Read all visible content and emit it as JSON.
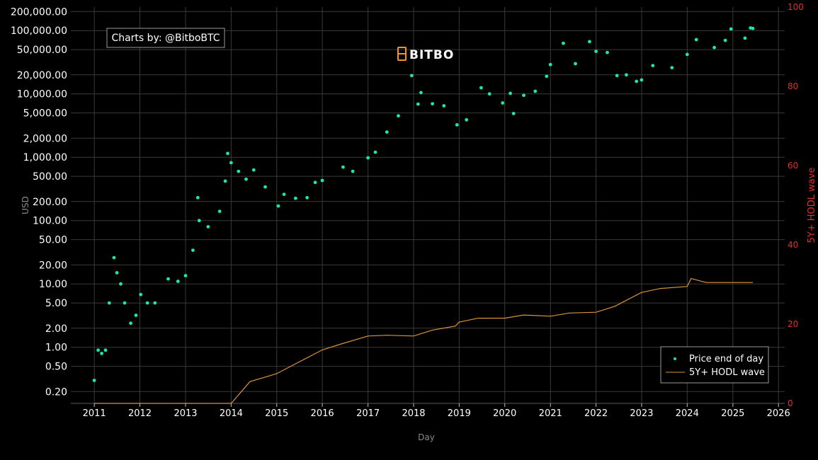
{
  "credit": "Charts by: @BitboBTC",
  "logo_text": "BITBO",
  "colors": {
    "background": "#000000",
    "price": "#1de9a0",
    "hodl": "#d9923b",
    "right_axis": "#e0312b",
    "grid": "#3a3a3a",
    "logo_accent": "#f7931a"
  },
  "chart_data": {
    "type": "scatter",
    "xlabel": "Day",
    "ylabel": "USD",
    "y2label": "5Y+ HODL wave",
    "y_scale": "log",
    "ylim": [
      0.13,
      235000
    ],
    "y2lim": [
      0,
      100
    ],
    "xlim": [
      "2010-06-27",
      "2026-02-20"
    ],
    "grid": true,
    "legend_position": "bottom-right",
    "x_ticks": [
      "2011",
      "2012",
      "2013",
      "2014",
      "2015",
      "2016",
      "2017",
      "2018",
      "2019",
      "2020",
      "2021",
      "2022",
      "2023",
      "2024",
      "2025",
      "2026"
    ],
    "y_ticks": [
      {
        "value": 200000,
        "label": "200,000.00"
      },
      {
        "value": 100000,
        "label": "100,000.00"
      },
      {
        "value": 50000,
        "label": "50,000.00"
      },
      {
        "value": 20000,
        "label": "20,000.00"
      },
      {
        "value": 10000,
        "label": "10,000.00"
      },
      {
        "value": 5000,
        "label": "5,000.00"
      },
      {
        "value": 2000,
        "label": "2,000.00"
      },
      {
        "value": 1000,
        "label": "1,000.00"
      },
      {
        "value": 500,
        "label": "500.00"
      },
      {
        "value": 200,
        "label": "200.00"
      },
      {
        "value": 100,
        "label": "100.00"
      },
      {
        "value": 50,
        "label": "50.00"
      },
      {
        "value": 20,
        "label": "20.00"
      },
      {
        "value": 10,
        "label": "10.00"
      },
      {
        "value": 5,
        "label": "5.00"
      },
      {
        "value": 2,
        "label": "2.00"
      },
      {
        "value": 1,
        "label": "1.00"
      },
      {
        "value": 0.5,
        "label": "0.50"
      },
      {
        "value": 0.2,
        "label": "0.20"
      }
    ],
    "y2_ticks": [
      0,
      20,
      40,
      60,
      80,
      100
    ],
    "series": [
      {
        "name": "Price end of day",
        "kind": "scatter",
        "points": [
          [
            "2011-01-01",
            0.3
          ],
          [
            "2011-02-01",
            0.9
          ],
          [
            "2011-03-01",
            0.8
          ],
          [
            "2011-04-01",
            0.9
          ],
          [
            "2011-05-01",
            5.0
          ],
          [
            "2011-06-08",
            26
          ],
          [
            "2011-07-01",
            15
          ],
          [
            "2011-08-01",
            10
          ],
          [
            "2011-09-01",
            5
          ],
          [
            "2011-10-20",
            2.4
          ],
          [
            "2011-12-01",
            3.2
          ],
          [
            "2012-01-08",
            6.8
          ],
          [
            "2012-03-01",
            5.0
          ],
          [
            "2012-05-01",
            5.0
          ],
          [
            "2012-08-15",
            12
          ],
          [
            "2012-11-01",
            11
          ],
          [
            "2013-01-01",
            13.5
          ],
          [
            "2013-03-01",
            34
          ],
          [
            "2013-04-09",
            230
          ],
          [
            "2013-04-20",
            100
          ],
          [
            "2013-07-01",
            80
          ],
          [
            "2013-10-01",
            140
          ],
          [
            "2013-11-15",
            420
          ],
          [
            "2013-12-04",
            1150
          ],
          [
            "2014-01-01",
            820
          ],
          [
            "2014-03-01",
            600
          ],
          [
            "2014-05-01",
            450
          ],
          [
            "2014-07-01",
            630
          ],
          [
            "2014-10-01",
            340
          ],
          [
            "2015-01-14",
            170
          ],
          [
            "2015-03-01",
            260
          ],
          [
            "2015-06-01",
            225
          ],
          [
            "2015-09-01",
            230
          ],
          [
            "2015-11-05",
            400
          ],
          [
            "2016-01-01",
            430
          ],
          [
            "2016-06-15",
            700
          ],
          [
            "2016-09-01",
            600
          ],
          [
            "2017-01-01",
            980
          ],
          [
            "2017-03-01",
            1200
          ],
          [
            "2017-06-01",
            2500
          ],
          [
            "2017-09-01",
            4500
          ],
          [
            "2017-12-17",
            19500
          ],
          [
            "2018-02-06",
            6900
          ],
          [
            "2018-03-01",
            10500
          ],
          [
            "2018-06-01",
            7000
          ],
          [
            "2018-09-01",
            6500
          ],
          [
            "2018-12-15",
            3250
          ],
          [
            "2019-03-01",
            3900
          ],
          [
            "2019-06-26",
            12500
          ],
          [
            "2019-09-01",
            10000
          ],
          [
            "2019-12-15",
            7200
          ],
          [
            "2020-02-15",
            10200
          ],
          [
            "2020-03-12",
            4900
          ],
          [
            "2020-06-01",
            9500
          ],
          [
            "2020-09-01",
            11000
          ],
          [
            "2020-12-01",
            19000
          ],
          [
            "2021-01-01",
            29000
          ],
          [
            "2021-04-14",
            63000
          ],
          [
            "2021-07-20",
            30000
          ],
          [
            "2021-11-10",
            67000
          ],
          [
            "2022-01-01",
            47000
          ],
          [
            "2022-04-01",
            45000
          ],
          [
            "2022-06-18",
            19500
          ],
          [
            "2022-09-01",
            20000
          ],
          [
            "2022-11-21",
            15800
          ],
          [
            "2023-01-01",
            16600
          ],
          [
            "2023-04-01",
            28000
          ],
          [
            "2023-09-01",
            26000
          ],
          [
            "2024-01-01",
            42000
          ],
          [
            "2024-03-14",
            72000
          ],
          [
            "2024-08-05",
            54000
          ],
          [
            "2024-11-01",
            70000
          ],
          [
            "2024-12-17",
            106000
          ],
          [
            "2025-04-08",
            76000
          ],
          [
            "2025-05-22",
            110000
          ],
          [
            "2025-06-10",
            108000
          ]
        ]
      },
      {
        "name": "5Y+ HODL wave",
        "kind": "line",
        "axis": "right",
        "points": [
          [
            "2011-01-01",
            0
          ],
          [
            "2014-01-01",
            0
          ],
          [
            "2014-06-01",
            5.5
          ],
          [
            "2015-01-01",
            7.5
          ],
          [
            "2015-06-01",
            10
          ],
          [
            "2016-01-01",
            13.5
          ],
          [
            "2016-06-01",
            15
          ],
          [
            "2017-01-01",
            17
          ],
          [
            "2017-06-01",
            17.2
          ],
          [
            "2018-01-01",
            17
          ],
          [
            "2018-06-01",
            18.5
          ],
          [
            "2018-12-01",
            19.5
          ],
          [
            "2019-01-01",
            20.5
          ],
          [
            "2019-06-01",
            21.5
          ],
          [
            "2020-01-01",
            21.5
          ],
          [
            "2020-06-01",
            22.3
          ],
          [
            "2021-01-01",
            22
          ],
          [
            "2021-06-01",
            22.8
          ],
          [
            "2022-01-01",
            23
          ],
          [
            "2022-06-01",
            24.5
          ],
          [
            "2023-01-01",
            28
          ],
          [
            "2023-06-01",
            29
          ],
          [
            "2024-01-01",
            29.5
          ],
          [
            "2024-02-01",
            31.5
          ],
          [
            "2024-06-01",
            30.5
          ],
          [
            "2025-01-01",
            30.5
          ],
          [
            "2025-06-10",
            30.5
          ]
        ]
      }
    ]
  }
}
